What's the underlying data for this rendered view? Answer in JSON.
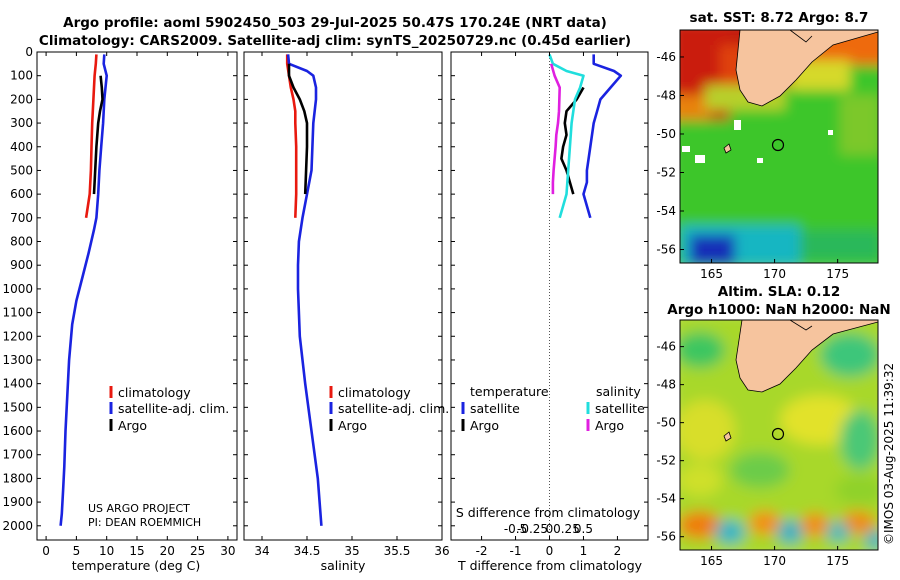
{
  "title": {
    "line1": "Argo profile: aoml 5902450_503 29-Jul-2025 50.47S 170.24E (NRT data)",
    "line2": "Climatology: CARS2009. Satellite-adj clim: synTS_20250729.nc (0.45d earlier)"
  },
  "project": {
    "line1": "US ARGO PROJECT",
    "line2": "PI: DEAN ROEMMICH"
  },
  "watermark": "©IMOS 03-Aug-2025 11:39:32",
  "colors": {
    "climatology": "#e8190f",
    "satellite": "#1a23e0",
    "argo": "#000000",
    "satellite_diff": "#20dedd",
    "argo_diff": "#e01fe0"
  },
  "chart_data": [
    {
      "type": "line",
      "name": "temperature-panel",
      "xlabel": "temperature (deg C)",
      "xlim": [
        -1.5,
        31.5
      ],
      "xticks": [
        0,
        5,
        10,
        15,
        20,
        25,
        30
      ],
      "ylim": [
        2060,
        0
      ],
      "yticks": [
        0,
        100,
        200,
        300,
        400,
        500,
        600,
        700,
        800,
        900,
        1000,
        1100,
        1200,
        1300,
        1400,
        1500,
        1600,
        1700,
        1800,
        1900,
        2000
      ],
      "legend": [
        "climatology",
        "satellite-adj. clim.",
        "Argo"
      ],
      "series": [
        {
          "name": "climatology",
          "color": "#e8190f",
          "x": [
            8.3,
            8.2,
            8.0,
            7.8,
            7.6,
            7.5,
            7.4,
            7.2,
            6.9,
            6.6
          ],
          "y": [
            10,
            50,
            100,
            200,
            300,
            400,
            500,
            600,
            650,
            700
          ]
        },
        {
          "name": "satellite-adj. clim.",
          "color": "#1a23e0",
          "x": [
            9.6,
            9.5,
            10.0,
            9.6,
            9.4,
            9.1,
            8.8,
            8.6,
            8.3,
            7.9,
            7.0,
            6.0,
            5.0,
            4.3,
            3.8,
            3.5,
            3.2,
            3.0,
            2.8,
            2.6,
            2.4
          ],
          "y": [
            10,
            50,
            100,
            200,
            300,
            400,
            500,
            600,
            700,
            750,
            850,
            950,
            1050,
            1150,
            1300,
            1450,
            1600,
            1750,
            1850,
            1950,
            2000
          ]
        },
        {
          "name": "Argo",
          "color": "#000000",
          "x": [
            9.0,
            9.2,
            9.3,
            8.9,
            8.6,
            8.3,
            8.1,
            8.0,
            7.9
          ],
          "y": [
            100,
            150,
            200,
            250,
            300,
            400,
            500,
            550,
            600
          ]
        }
      ]
    },
    {
      "type": "line",
      "name": "salinity-panel",
      "xlabel": "salinity",
      "xlim": [
        33.8,
        36.0
      ],
      "xticks": [
        34,
        34.5,
        35,
        35.5,
        36
      ],
      "xticklabels": [
        "34",
        "34.5",
        "35",
        "35.5",
        "36"
      ],
      "ylim": [
        2060,
        0
      ],
      "legend": [
        "climatology",
        "satellite-adj. clim.",
        "Argo"
      ],
      "series": [
        {
          "name": "climatology",
          "color": "#e8190f",
          "x": [
            34.28,
            34.28,
            34.3,
            34.32,
            34.35,
            34.37,
            34.37,
            34.38,
            34.38,
            34.38,
            34.37
          ],
          "y": [
            10,
            50,
            100,
            150,
            200,
            250,
            300,
            400,
            500,
            600,
            700
          ]
        },
        {
          "name": "satellite-adj. clim.",
          "color": "#1a23e0",
          "x": [
            34.29,
            34.3,
            34.5,
            34.57,
            34.6,
            34.6,
            34.57,
            34.56,
            34.55,
            34.5,
            34.45,
            34.41,
            34.4,
            34.4,
            34.42,
            34.48,
            34.55,
            34.62,
            34.66
          ],
          "y": [
            10,
            50,
            80,
            100,
            150,
            200,
            300,
            400,
            500,
            600,
            700,
            800,
            900,
            1000,
            1200,
            1400,
            1600,
            1800,
            2000
          ]
        },
        {
          "name": "Argo",
          "color": "#000000",
          "x": [
            34.3,
            34.3,
            34.35,
            34.42,
            34.47,
            34.5,
            34.5,
            34.5,
            34.49,
            34.48
          ],
          "y": [
            50,
            100,
            150,
            200,
            250,
            300,
            350,
            400,
            500,
            600
          ]
        }
      ]
    },
    {
      "type": "line",
      "name": "difference-panel",
      "xlabel": "T difference from climatology",
      "xlabel2": "S difference from climatology",
      "xlim": [
        -2.9,
        2.9
      ],
      "xticks": [
        -2,
        -1,
        0,
        1,
        2
      ],
      "s_xticks": [
        -0.5,
        -0.25,
        0,
        0.25,
        0.5
      ],
      "s_xticklabels": [
        "-0.5",
        "-0.25",
        "0",
        "0.25",
        "0.5"
      ],
      "ylim": [
        2060,
        0
      ],
      "legend_temperature": {
        "title": "temperature",
        "items": [
          "satellite",
          "Argo"
        ]
      },
      "legend_salinity": {
        "title": "salinity",
        "items": [
          "satellite",
          "Argo"
        ]
      },
      "series": [
        {
          "name": "temperature satellite",
          "color": "#1a23e0",
          "x": [
            1.3,
            1.3,
            1.9,
            2.1,
            1.8,
            1.5,
            1.4,
            1.3,
            1.2,
            1.1,
            1.1,
            1.0,
            1.1,
            1.2
          ],
          "y": [
            10,
            50,
            80,
            100,
            150,
            200,
            250,
            300,
            400,
            500,
            550,
            600,
            650,
            700
          ]
        },
        {
          "name": "temperature Argo",
          "color": "#000000",
          "x": [
            1.0,
            0.8,
            0.5,
            0.45,
            0.5,
            0.4,
            0.35,
            0.5,
            0.6,
            0.7
          ],
          "y": [
            150,
            200,
            250,
            300,
            350,
            400,
            450,
            500,
            550,
            600
          ]
        },
        {
          "name": "salinity satellite",
          "color": "#20dedd",
          "x": [
            0.0,
            0.1,
            0.5,
            1.0,
            0.9,
            0.75,
            0.65,
            0.6,
            0.55,
            0.5,
            0.4,
            0.3
          ],
          "y": [
            10,
            50,
            80,
            100,
            150,
            200,
            300,
            400,
            500,
            600,
            650,
            700
          ]
        },
        {
          "name": "salinity Argo",
          "color": "#e01fe0",
          "x": [
            0.05,
            0.15,
            0.3,
            0.28,
            0.25,
            0.2,
            0.18,
            0.15,
            0.12,
            0.1,
            0.1
          ],
          "y": [
            50,
            100,
            150,
            250,
            300,
            350,
            400,
            450,
            500,
            550,
            600
          ]
        }
      ]
    },
    {
      "type": "heatmap",
      "name": "sst-map",
      "title": "sat. SST: 8.72 Argo: 8.7",
      "xlim": [
        162.5,
        178.2
      ],
      "ylim": [
        -56.7,
        -44.6
      ],
      "xticks": [
        165,
        170,
        175
      ],
      "yticks": [
        -46,
        -48,
        -50,
        -52,
        -54,
        -56
      ],
      "marker": {
        "lon": 170.24,
        "lat": -50.47
      }
    },
    {
      "type": "heatmap",
      "name": "sla-map",
      "title": "Altim. SLA: 0.12",
      "title2": "Argo h1000: NaN h2000: NaN",
      "xlim": [
        162.5,
        178.2
      ],
      "ylim": [
        -56.7,
        -44.6
      ],
      "xticks": [
        165,
        170,
        175
      ],
      "yticks": [
        -46,
        -48,
        -50,
        -52,
        -54,
        -56
      ],
      "marker": {
        "lon": 170.24,
        "lat": -50.47
      }
    }
  ]
}
